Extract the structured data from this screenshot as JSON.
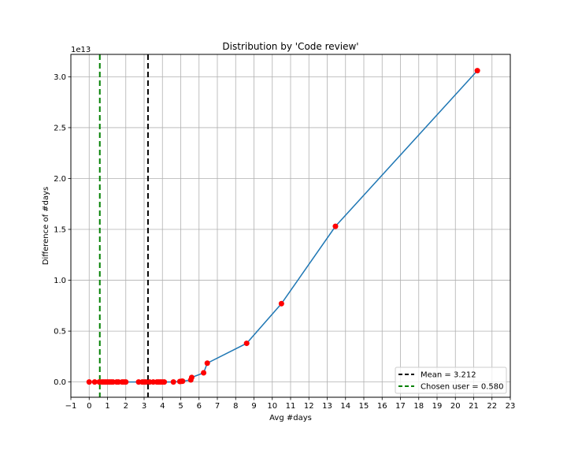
{
  "chart_data": {
    "type": "line",
    "title": "Distribution by 'Code review'",
    "xlabel": "Avg #days",
    "ylabel": "Difference of #days",
    "y_offset_label": "1e13",
    "xlim": [
      -1,
      23
    ],
    "ylim": [
      -0.15,
      3.22
    ],
    "x_ticks": [
      -1,
      0,
      1,
      2,
      3,
      4,
      5,
      6,
      7,
      8,
      9,
      10,
      11,
      12,
      13,
      14,
      15,
      16,
      17,
      18,
      19,
      20,
      21,
      22,
      23
    ],
    "x_tick_labels": [
      "−1",
      "0",
      "1",
      "2",
      "3",
      "4",
      "5",
      "6",
      "7",
      "8",
      "9",
      "10",
      "11",
      "12",
      "13",
      "14",
      "15",
      "16",
      "17",
      "18",
      "19",
      "20",
      "21",
      "22",
      "23"
    ],
    "y_ticks": [
      0.0,
      0.5,
      1.0,
      1.5,
      2.0,
      2.5,
      3.0
    ],
    "y_tick_labels": [
      "0.0",
      "0.5",
      "1.0",
      "1.5",
      "2.0",
      "2.5",
      "3.0"
    ],
    "grid": true,
    "legend_position": "bottom-right",
    "series": [
      {
        "line_color": "#1f77b4",
        "marker_color": "#ff0000",
        "x": [
          0.0,
          0.3,
          0.55,
          0.7,
          0.8,
          0.9,
          1.0,
          1.1,
          1.2,
          1.3,
          1.5,
          1.6,
          1.8,
          1.9,
          2.0,
          2.7,
          2.9,
          3.0,
          3.1,
          3.3,
          3.5,
          3.7,
          3.8,
          3.9,
          4.0,
          4.1,
          4.6,
          4.95,
          5.05,
          5.1,
          5.55,
          5.6,
          6.25,
          6.45,
          8.6,
          10.5,
          13.45,
          21.2
        ],
        "y": [
          0.0,
          0.0,
          0.0,
          0.0,
          0.0,
          0.0,
          0.0,
          0.0,
          0.0,
          0.0,
          0.0,
          0.0,
          0.0,
          0.0,
          0.0,
          0.0,
          0.0,
          0.0,
          0.0,
          0.0,
          0.0,
          0.0,
          0.0,
          0.0,
          0.0,
          0.0,
          0.0,
          0.005,
          0.007,
          0.008,
          0.02,
          0.045,
          0.09,
          0.185,
          0.38,
          0.77,
          1.53,
          3.06
        ]
      }
    ],
    "reference_lines": [
      {
        "label": "Mean = 3.212",
        "x": 3.212,
        "color": "#000000"
      },
      {
        "label": "Chosen user = 0.580",
        "x": 0.58,
        "color": "#008000"
      }
    ]
  }
}
